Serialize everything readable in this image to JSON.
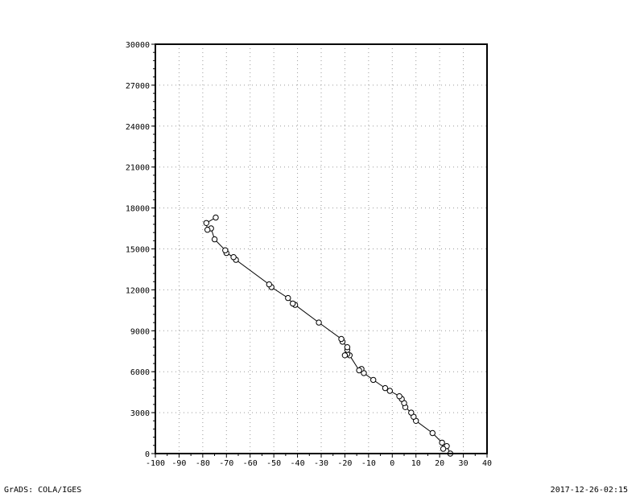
{
  "footer": {
    "left": "GrADS: COLA/IGES",
    "right": "2017-12-26-02:15"
  },
  "chart_data": {
    "type": "line",
    "title": "",
    "xlabel": "",
    "ylabel": "",
    "xlim": [
      -100,
      40
    ],
    "ylim": [
      0,
      30000
    ],
    "x_ticks": [
      -100,
      -90,
      -80,
      -70,
      -60,
      -50,
      -40,
      -30,
      -20,
      -10,
      0,
      10,
      20,
      30,
      40
    ],
    "y_ticks": [
      0,
      3000,
      6000,
      9000,
      12000,
      15000,
      18000,
      21000,
      24000,
      27000,
      30000
    ],
    "grid": true,
    "marker": "open-circle",
    "series": [
      {
        "name": "",
        "points": [
          [
            24.5,
            0
          ],
          [
            23,
            550
          ],
          [
            21.5,
            350
          ],
          [
            21,
            800
          ],
          [
            17,
            1500
          ],
          [
            10,
            2400
          ],
          [
            9,
            2700
          ],
          [
            8,
            3000
          ],
          [
            5.5,
            3400
          ],
          [
            5,
            3700
          ],
          [
            4,
            4000
          ],
          [
            3,
            4200
          ],
          [
            -1,
            4600
          ],
          [
            -3,
            4800
          ],
          [
            -8,
            5400
          ],
          [
            -12,
            5900
          ],
          [
            -13,
            6200
          ],
          [
            -14,
            6100
          ],
          [
            -18,
            7200
          ],
          [
            -19,
            7300
          ],
          [
            -20,
            7200
          ],
          [
            -19,
            7600
          ],
          [
            -19,
            7800
          ],
          [
            -21,
            8200
          ],
          [
            -21.5,
            8400
          ],
          [
            -31,
            9600
          ],
          [
            -41,
            10900
          ],
          [
            -42,
            11000
          ],
          [
            -44,
            11400
          ],
          [
            -51,
            12200
          ],
          [
            -52,
            12400
          ],
          [
            -66,
            14200
          ],
          [
            -67,
            14400
          ],
          [
            -70,
            14700
          ],
          [
            -70.5,
            14900
          ],
          [
            -75,
            15700
          ],
          [
            -76.5,
            16500
          ],
          [
            -78,
            16400
          ],
          [
            -78.5,
            16900
          ],
          [
            -74.5,
            17300
          ]
        ]
      }
    ]
  }
}
